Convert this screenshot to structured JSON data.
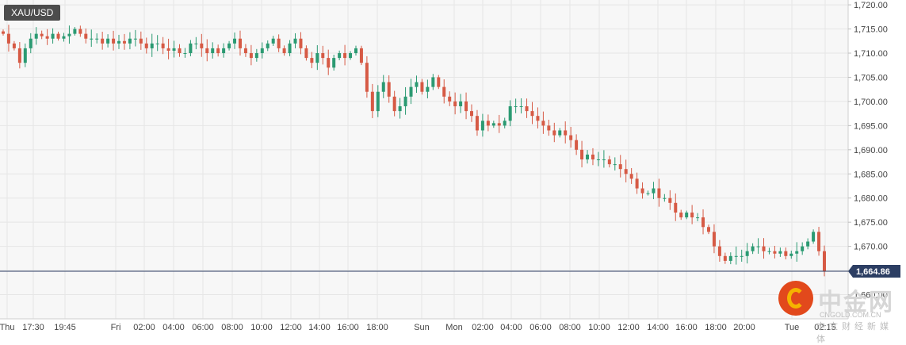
{
  "symbol": "XAU/USD",
  "colors": {
    "up": "#2b9a72",
    "down": "#d65a45",
    "price_line": "#2c3e63",
    "grid": "#e6e6e6"
  },
  "watermark": {
    "brand": "中金网",
    "site": "CNGOLD.COM.CN",
    "tagline": "中文财经新媒体",
    "icon": "cngold-logo-icon"
  },
  "chart_data": {
    "type": "candlestick",
    "title": "XAU/USD",
    "ylim": [
      1655,
      1721
    ],
    "y_ticks": [
      1720,
      1715,
      1710,
      1705,
      1700,
      1695,
      1690,
      1685,
      1680,
      1675,
      1670,
      1665,
      1660
    ],
    "y_tick_labels": [
      "1,720.00",
      "1,715.00",
      "1,710.00",
      "1,705.00",
      "1,700.00",
      "1,695.00",
      "1,690.00",
      "1,685.00",
      "1,680.00",
      "1,675.00",
      "1,670.00",
      "1,665.00",
      "1,660.00"
    ],
    "current_price": 1664.86,
    "current_price_label": "1,664.86",
    "x_labels": [
      "Thu",
      "17:30",
      "19:45",
      "Fri",
      "02:00",
      "04:00",
      "06:00",
      "08:00",
      "10:00",
      "12:00",
      "14:00",
      "16:00",
      "18:00",
      "Sun",
      "Mon",
      "02:00",
      "04:00",
      "06:00",
      "08:00",
      "10:00",
      "12:00",
      "14:00",
      "16:00",
      "18:00",
      "20:00",
      "Tue",
      "02:15"
    ],
    "candle_count": 150,
    "closes": [
      1714.0,
      1712.0,
      1711.0,
      1708.0,
      1711.0,
      1713.0,
      1714.0,
      1713.5,
      1713.0,
      1714.0,
      1713.0,
      1713.5,
      1714.0,
      1715.0,
      1714.0,
      1713.0,
      1713.0,
      1713.0,
      1712.0,
      1713.0,
      1712.0,
      1712.5,
      1712.0,
      1713.0,
      1713.0,
      1712.0,
      1711.0,
      1712.0,
      1712.0,
      1711.0,
      1710.5,
      1711.0,
      1710.0,
      1710.0,
      1712.0,
      1712.0,
      1711.0,
      1710.0,
      1711.0,
      1710.0,
      1711.0,
      1712.0,
      1713.0,
      1711.0,
      1710.0,
      1709.0,
      1710.0,
      1711.0,
      1712.0,
      1713.0,
      1711.0,
      1710.0,
      1712.0,
      1713.0,
      1711.0,
      1709.0,
      1708.0,
      1710.0,
      1709.0,
      1707.0,
      1709.0,
      1710.0,
      1709.0,
      1710.0,
      1711.0,
      1708.0,
      1702.0,
      1698.0,
      1702.0,
      1704.0,
      1701.0,
      1698.0,
      1699.0,
      1701.0,
      1703.0,
      1704.0,
      1702.0,
      1703.0,
      1705.0,
      1703.0,
      1701.0,
      1700.0,
      1699.0,
      1700.0,
      1698.0,
      1697.0,
      1694.0,
      1696.0,
      1695.0,
      1695.5,
      1695.0,
      1696.0,
      1699.0,
      1699.0,
      1699.0,
      1698.0,
      1697.0,
      1696.0,
      1695.0,
      1694.0,
      1693.0,
      1694.0,
      1693.0,
      1692.0,
      1690.0,
      1688.0,
      1689.0,
      1688.0,
      1688.0,
      1688.0,
      1687.0,
      1687.0,
      1686.0,
      1685.0,
      1684.0,
      1682.0,
      1681.0,
      1681.0,
      1682.0,
      1680.0,
      1680.0,
      1679.0,
      1677.0,
      1676.0,
      1677.0,
      1676.0,
      1676.0,
      1674.0,
      1673.0,
      1670.0,
      1668.0,
      1667.0,
      1668.0,
      1668.0,
      1668.0,
      1669.0,
      1670.0,
      1670.0,
      1669.0,
      1669.0,
      1668.5,
      1669.0,
      1668.0,
      1668.5,
      1669.0,
      1670.0,
      1671.0,
      1673.0,
      1669.0,
      1664.86
    ]
  }
}
